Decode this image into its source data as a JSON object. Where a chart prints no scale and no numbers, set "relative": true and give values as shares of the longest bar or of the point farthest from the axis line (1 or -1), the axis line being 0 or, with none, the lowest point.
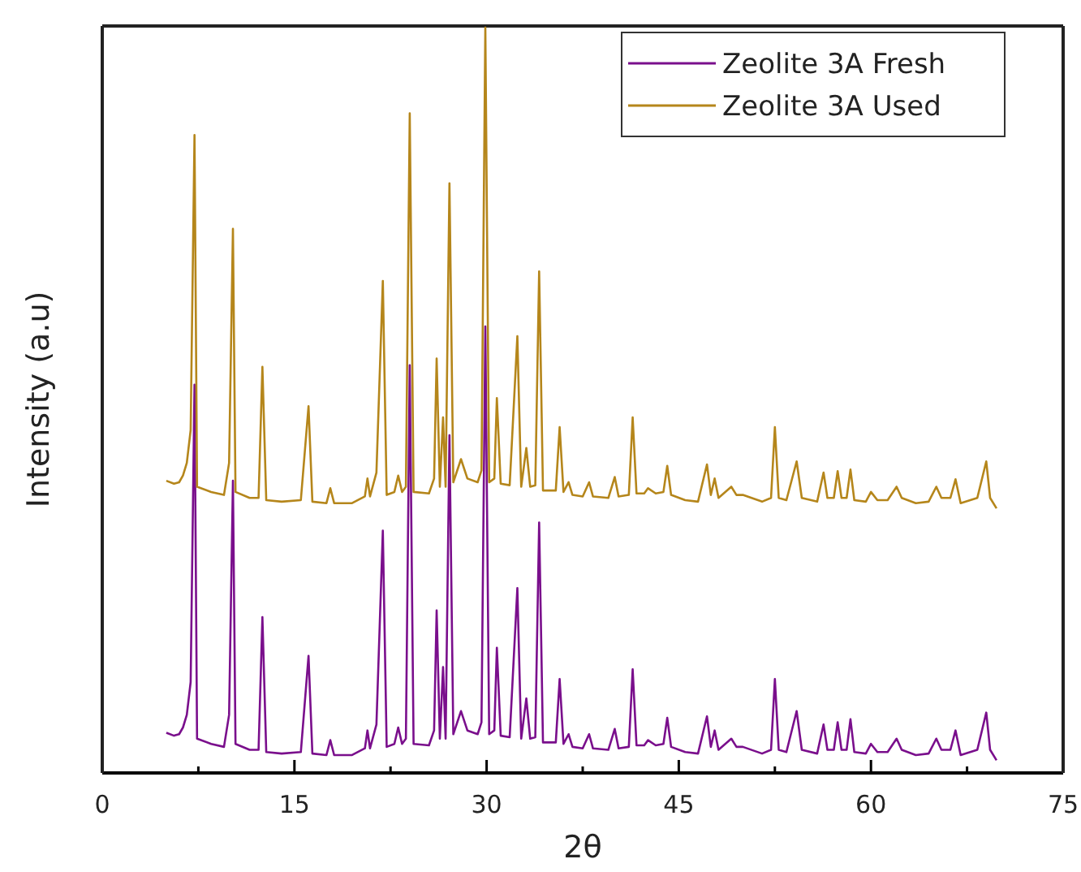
{
  "chart_data": {
    "type": "line",
    "xlabel": "2θ",
    "ylabel": "Intensity (a.u)",
    "relative": true,
    "legend": "top right",
    "grid": false,
    "marker": "none",
    "line_style": "solid",
    "xlim": [
      0,
      75
    ],
    "xticks": [
      0,
      {
        "value": 7.5,
        "label": null
      },
      15,
      {
        "value": 22.5,
        "label": null
      },
      30,
      {
        "value": 37.5,
        "label": null
      },
      45,
      {
        "value": 52.5,
        "label": null
      },
      60,
      {
        "value": 67.5,
        "label": null
      },
      75
    ],
    "x": [
      5.0,
      5.6,
      6.0,
      6.3,
      6.6,
      6.9,
      7.2,
      7.4,
      8.5,
      9.5,
      9.9,
      10.2,
      10.4,
      11.5,
      12.2,
      12.5,
      12.8,
      14,
      15.5,
      16.1,
      16.4,
      17.5,
      17.8,
      18.1,
      19.5,
      20.5,
      20.7,
      20.9,
      21.4,
      21.9,
      22.2,
      22.8,
      23.1,
      23.4,
      23.7,
      24.0,
      24.3,
      25.5,
      25.9,
      26.1,
      26.35,
      26.6,
      26.8,
      27.1,
      27.4,
      28.0,
      28.5,
      29.3,
      29.6,
      29.9,
      30.2,
      30.6,
      30.8,
      31.1,
      31.8,
      32.4,
      32.7,
      33.1,
      33.4,
      33.8,
      34.1,
      34.4,
      35.4,
      35.7,
      36.0,
      36.4,
      36.7,
      37.5,
      38.0,
      38.3,
      39.5,
      40.0,
      40.3,
      41.1,
      41.4,
      41.7,
      42.3,
      42.6,
      43.2,
      43.8,
      44.1,
      44.4,
      45.5,
      46.5,
      47.2,
      47.5,
      47.8,
      48.1,
      49.1,
      49.5,
      50.0,
      51.5,
      52.2,
      52.5,
      52.8,
      53.4,
      54.2,
      54.6,
      55.8,
      56.3,
      56.6,
      57.1,
      57.4,
      57.7,
      58.1,
      58.4,
      58.7,
      59.6,
      60.0,
      60.5,
      61.3,
      62.0,
      62.4,
      63.5,
      64.5,
      65.1,
      65.5,
      66.2,
      66.6,
      67.0,
      68.3,
      69.0,
      69.3,
      69.8
    ],
    "series": [
      {
        "name": "Zeolite 3A Fresh",
        "color": "#7a0f8c",
        "values": [
          0.054,
          0.05,
          0.052,
          0.061,
          0.078,
          0.122,
          0.521,
          0.046,
          0.039,
          0.035,
          0.078,
          0.392,
          0.039,
          0.031,
          0.031,
          0.209,
          0.028,
          0.026,
          0.028,
          0.157,
          0.026,
          0.024,
          0.044,
          0.024,
          0.024,
          0.033,
          0.057,
          0.033,
          0.065,
          0.325,
          0.035,
          0.039,
          0.061,
          0.039,
          0.046,
          0.547,
          0.039,
          0.037,
          0.057,
          0.218,
          0.046,
          0.142,
          0.046,
          0.453,
          0.052,
          0.083,
          0.057,
          0.052,
          0.068,
          0.599,
          0.052,
          0.057,
          0.168,
          0.05,
          0.048,
          0.248,
          0.046,
          0.1,
          0.046,
          0.048,
          0.336,
          0.041,
          0.041,
          0.126,
          0.039,
          0.052,
          0.035,
          0.033,
          0.052,
          0.033,
          0.031,
          0.059,
          0.033,
          0.035,
          0.139,
          0.037,
          0.037,
          0.044,
          0.037,
          0.039,
          0.074,
          0.035,
          0.028,
          0.026,
          0.076,
          0.035,
          0.057,
          0.031,
          0.046,
          0.035,
          0.035,
          0.026,
          0.031,
          0.126,
          0.031,
          0.028,
          0.083,
          0.031,
          0.026,
          0.065,
          0.031,
          0.031,
          0.068,
          0.031,
          0.031,
          0.072,
          0.028,
          0.026,
          0.039,
          0.028,
          0.028,
          0.046,
          0.031,
          0.024,
          0.026,
          0.046,
          0.031,
          0.031,
          0.057,
          0.024,
          0.031,
          0.081,
          0.031,
          0.017
        ]
      },
      {
        "name": "Zeolite 3A Used",
        "color": "#b5861b",
        "values": [
          0.392,
          0.388,
          0.39,
          0.399,
          0.416,
          0.46,
          0.856,
          0.384,
          0.377,
          0.373,
          0.416,
          0.73,
          0.377,
          0.369,
          0.369,
          0.545,
          0.366,
          0.364,
          0.366,
          0.492,
          0.364,
          0.362,
          0.382,
          0.362,
          0.362,
          0.371,
          0.395,
          0.371,
          0.403,
          0.66,
          0.373,
          0.377,
          0.399,
          0.377,
          0.384,
          0.885,
          0.377,
          0.375,
          0.395,
          0.556,
          0.384,
          0.477,
          0.384,
          0.791,
          0.39,
          0.421,
          0.395,
          0.39,
          0.406,
          1.0,
          0.39,
          0.395,
          0.503,
          0.388,
          0.386,
          0.586,
          0.384,
          0.436,
          0.384,
          0.386,
          0.673,
          0.379,
          0.379,
          0.464,
          0.377,
          0.39,
          0.373,
          0.371,
          0.39,
          0.371,
          0.369,
          0.397,
          0.371,
          0.373,
          0.477,
          0.375,
          0.375,
          0.382,
          0.375,
          0.377,
          0.412,
          0.373,
          0.366,
          0.364,
          0.414,
          0.373,
          0.395,
          0.369,
          0.384,
          0.373,
          0.373,
          0.364,
          0.369,
          0.464,
          0.369,
          0.366,
          0.418,
          0.369,
          0.364,
          0.403,
          0.369,
          0.369,
          0.405,
          0.369,
          0.369,
          0.407,
          0.366,
          0.364,
          0.377,
          0.366,
          0.366,
          0.384,
          0.369,
          0.362,
          0.364,
          0.384,
          0.369,
          0.369,
          0.394,
          0.362,
          0.369,
          0.418,
          0.369,
          0.355
        ]
      }
    ]
  }
}
